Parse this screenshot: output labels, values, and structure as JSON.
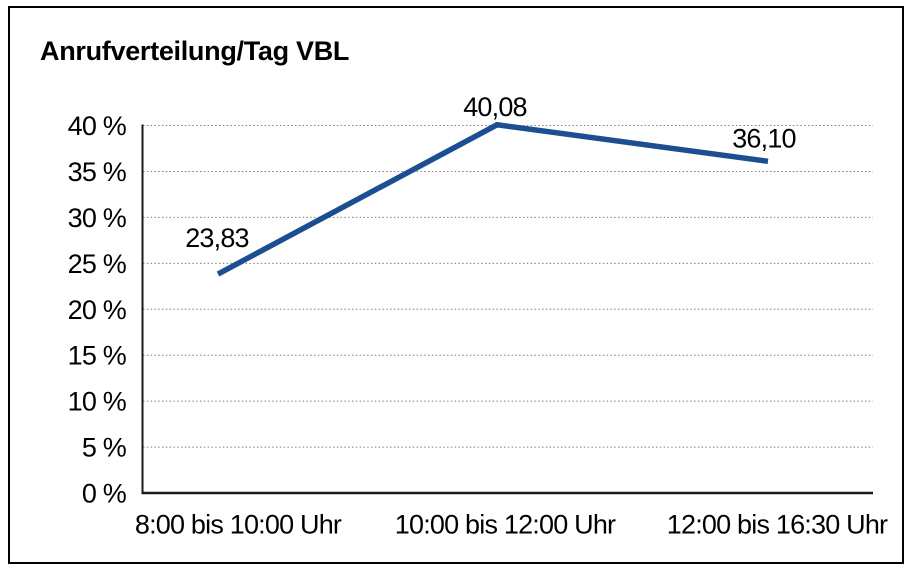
{
  "chart_data": {
    "type": "line",
    "title": "Anrufverteilung/Tag VBL",
    "categories": [
      "8:00 bis 10:00 Uhr",
      "10:00 bis 12:00 Uhr",
      "12:00 bis 16:30 Uhr"
    ],
    "series": [
      {
        "name": "Anrufverteilung/Tag VBL",
        "values": [
          23.83,
          40.08,
          36.1
        ]
      }
    ],
    "value_labels": [
      "23,83",
      "40,08",
      "36,10"
    ],
    "xlabel": "",
    "ylabel": "",
    "ylim": [
      0,
      40
    ],
    "ytick_step": 5,
    "ytick_labels": [
      "0 %",
      "5 %",
      "10 %",
      "15 %",
      "20 %",
      "25 %",
      "30 %",
      "35 %",
      "40 %"
    ],
    "grid": "horizontal-dotted",
    "legend": "none",
    "colors": {
      "line": "#1C4E92",
      "grid": "#7F7F7F",
      "axis": "#1A1A1A",
      "text": "#000000",
      "background": "#FFFFFF",
      "border": "#000000"
    }
  }
}
